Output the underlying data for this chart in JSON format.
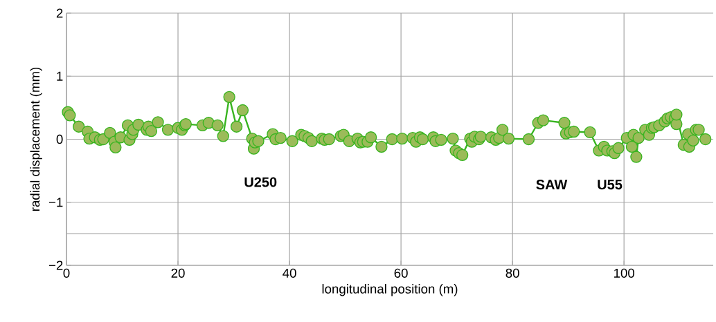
{
  "chart_data": {
    "type": "line",
    "xlabel": "longitudinal position (m)",
    "ylabel": "radial displacement (mm)",
    "xlim": [
      0,
      116
    ],
    "ylim": [
      -2,
      2
    ],
    "xticks": [
      0,
      20,
      40,
      60,
      80,
      100
    ],
    "yticks": [
      {
        "value": -2,
        "label": "−2"
      },
      {
        "value": -1,
        "label": "−1"
      },
      0,
      1,
      2
    ],
    "grid": true,
    "marker": "circle",
    "line_style": "solid",
    "ref_lines": [
      {
        "axis": "y",
        "value": -1.5,
        "label": null
      }
    ],
    "annotations": [
      "U250",
      "SAW",
      "U55"
    ],
    "series": [
      {
        "color": "#9bbb59",
        "x": [
          0.25,
          0.6,
          2.2,
          3.8,
          4.1,
          5.1,
          6,
          6.6,
          7.8,
          8.6,
          8.8,
          9.7,
          11,
          11.3,
          11.8,
          12,
          12.9,
          14.4,
          14.7,
          15.2,
          16.4,
          18.2,
          20,
          20.7,
          21.2,
          21.4,
          24.4,
          25.5,
          27.1,
          28.1,
          29.2,
          30.5,
          31.6,
          33.3,
          33.6,
          33.8,
          34.4,
          37,
          37.5,
          38.4,
          40.5,
          42.1,
          42.7,
          43.4,
          44,
          45.8,
          46.3,
          47.1,
          49.2,
          49.7,
          50.7,
          52.2,
          52.7,
          53.2,
          54,
          54.6,
          56.5,
          58.4,
          60.2,
          62.1,
          62.7,
          63.4,
          63.9,
          65.8,
          66.2,
          67.2,
          69.3,
          69.8,
          70.4,
          71,
          72.4,
          72.7,
          73.2,
          74,
          74.3,
          76.2,
          77,
          77.6,
          78.2,
          79.3,
          82.9,
          84.6,
          85.5,
          89.3,
          89.6,
          90.3,
          91,
          93.9,
          95.5,
          96.4,
          97,
          97.9,
          98.3,
          99,
          100.5,
          101.4,
          101.7,
          102.2,
          102.6,
          103.8,
          104.5,
          105,
          105.4,
          106.3,
          107.3,
          107.8,
          108.4,
          109.1,
          109.4,
          109.4,
          110.7,
          111.5,
          111.7,
          112.4,
          112.9,
          113.4,
          114.6
        ],
        "values": [
          0.43,
          0.38,
          0.2,
          0.12,
          0.01,
          0.03,
          -0.01,
          0.0,
          0.1,
          -0.04,
          -0.13,
          0.03,
          0.22,
          -0.01,
          0.08,
          0.15,
          0.23,
          0.15,
          0.2,
          0.13,
          0.27,
          0.15,
          0.18,
          0.15,
          0.22,
          0.24,
          0.22,
          0.26,
          0.22,
          0.05,
          0.67,
          0.2,
          0.46,
          0.01,
          -0.15,
          -0.05,
          -0.03,
          0.08,
          0.0,
          0.02,
          -0.03,
          0.07,
          0.05,
          0.02,
          -0.03,
          0.01,
          -0.01,
          0.0,
          0.05,
          0.07,
          -0.03,
          0.01,
          -0.05,
          -0.04,
          -0.04,
          0.03,
          -0.12,
          0.0,
          0.01,
          0.02,
          -0.04,
          0.03,
          0.0,
          0.03,
          -0.03,
          -0.01,
          0.01,
          -0.18,
          -0.22,
          -0.25,
          0.01,
          -0.04,
          0.04,
          0.0,
          0.04,
          0.03,
          -0.01,
          0.02,
          0.15,
          0.01,
          0.0,
          0.26,
          0.3,
          0.26,
          0.09,
          0.11,
          0.12,
          0.11,
          -0.18,
          -0.12,
          -0.18,
          -0.19,
          -0.22,
          -0.14,
          0.02,
          -0.12,
          0.07,
          -0.28,
          0.02,
          0.15,
          0.07,
          0.18,
          0.19,
          0.22,
          0.28,
          0.33,
          0.35,
          0.33,
          0.24,
          0.39,
          -0.09,
          0.08,
          -0.12,
          -0.02,
          0.15,
          0.15,
          0.0
        ]
      }
    ]
  }
}
